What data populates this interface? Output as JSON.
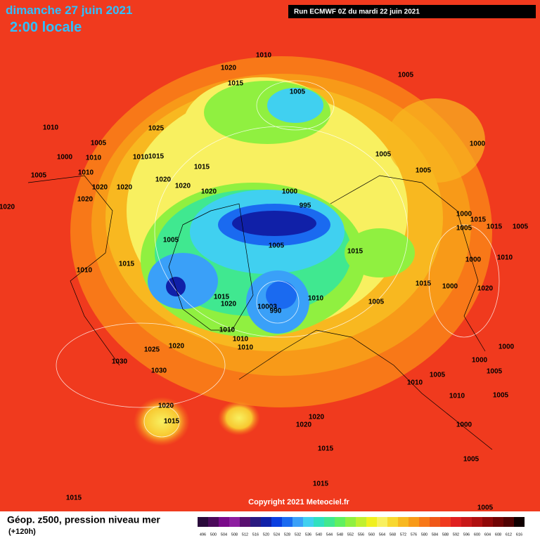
{
  "header": {
    "date": "dimanche 27 juin 2021",
    "time": "2:00 locale",
    "run": "Run ECMWF 0Z du mardi 22 juin 2021"
  },
  "isobar_labels": [
    "1010",
    "1020",
    "1015",
    "1005",
    "1005",
    "1010",
    "1005",
    "1025",
    "1000",
    "1010",
    "1015",
    "1010",
    "1005",
    "1010",
    "1020",
    "1020",
    "1020",
    "1020",
    "1015",
    "1020",
    "1005",
    "1005",
    "1000",
    "1000",
    "995",
    "1020",
    "1020",
    "1005",
    "1005",
    "1015",
    "1015",
    "1010",
    "1000",
    "1015",
    "1015",
    "1005",
    "1005",
    "1010",
    "1000",
    "1015",
    "1000",
    "1020",
    "1015",
    "1020",
    "1010",
    "10003",
    "990",
    "1005",
    "1010",
    "1010",
    "1010",
    "1025",
    "1020",
    "1030",
    "1030",
    "1000",
    "1000",
    "1005",
    "1010",
    "1020",
    "1015",
    "1020",
    "1020",
    "1015",
    "1015",
    "1015",
    "1005",
    "1005",
    "1000",
    "1010",
    "1005",
    "1005"
  ],
  "copyright": "Copyright 2021 Meteociel.fr",
  "legend": {
    "title": "Géop. z500, pression niveau mer",
    "lead": "(+120h)",
    "ticks": [
      496,
      500,
      504,
      508,
      512,
      516,
      520,
      524,
      528,
      532,
      536,
      540,
      544,
      548,
      552,
      556,
      560,
      564,
      568,
      572,
      576,
      580,
      584,
      588,
      592,
      596,
      600,
      604,
      608,
      612,
      616
    ],
    "colors": [
      "#2a0a3a",
      "#4b0a5a",
      "#7a0a8a",
      "#8e1ea0",
      "#5a1070",
      "#2a1a80",
      "#1020a8",
      "#0a3ee0",
      "#1a6af0",
      "#3aa0f8",
      "#40d0f0",
      "#30e0c0",
      "#40e890",
      "#60f060",
      "#90f040",
      "#c0f030",
      "#f0f020",
      "#f8f060",
      "#f8d830",
      "#f8b820",
      "#f89a18",
      "#f87818",
      "#f05818",
      "#f03a1e",
      "#e02020",
      "#c81818",
      "#b01010",
      "#900808",
      "#700404",
      "#500202",
      "#100000"
    ]
  }
}
